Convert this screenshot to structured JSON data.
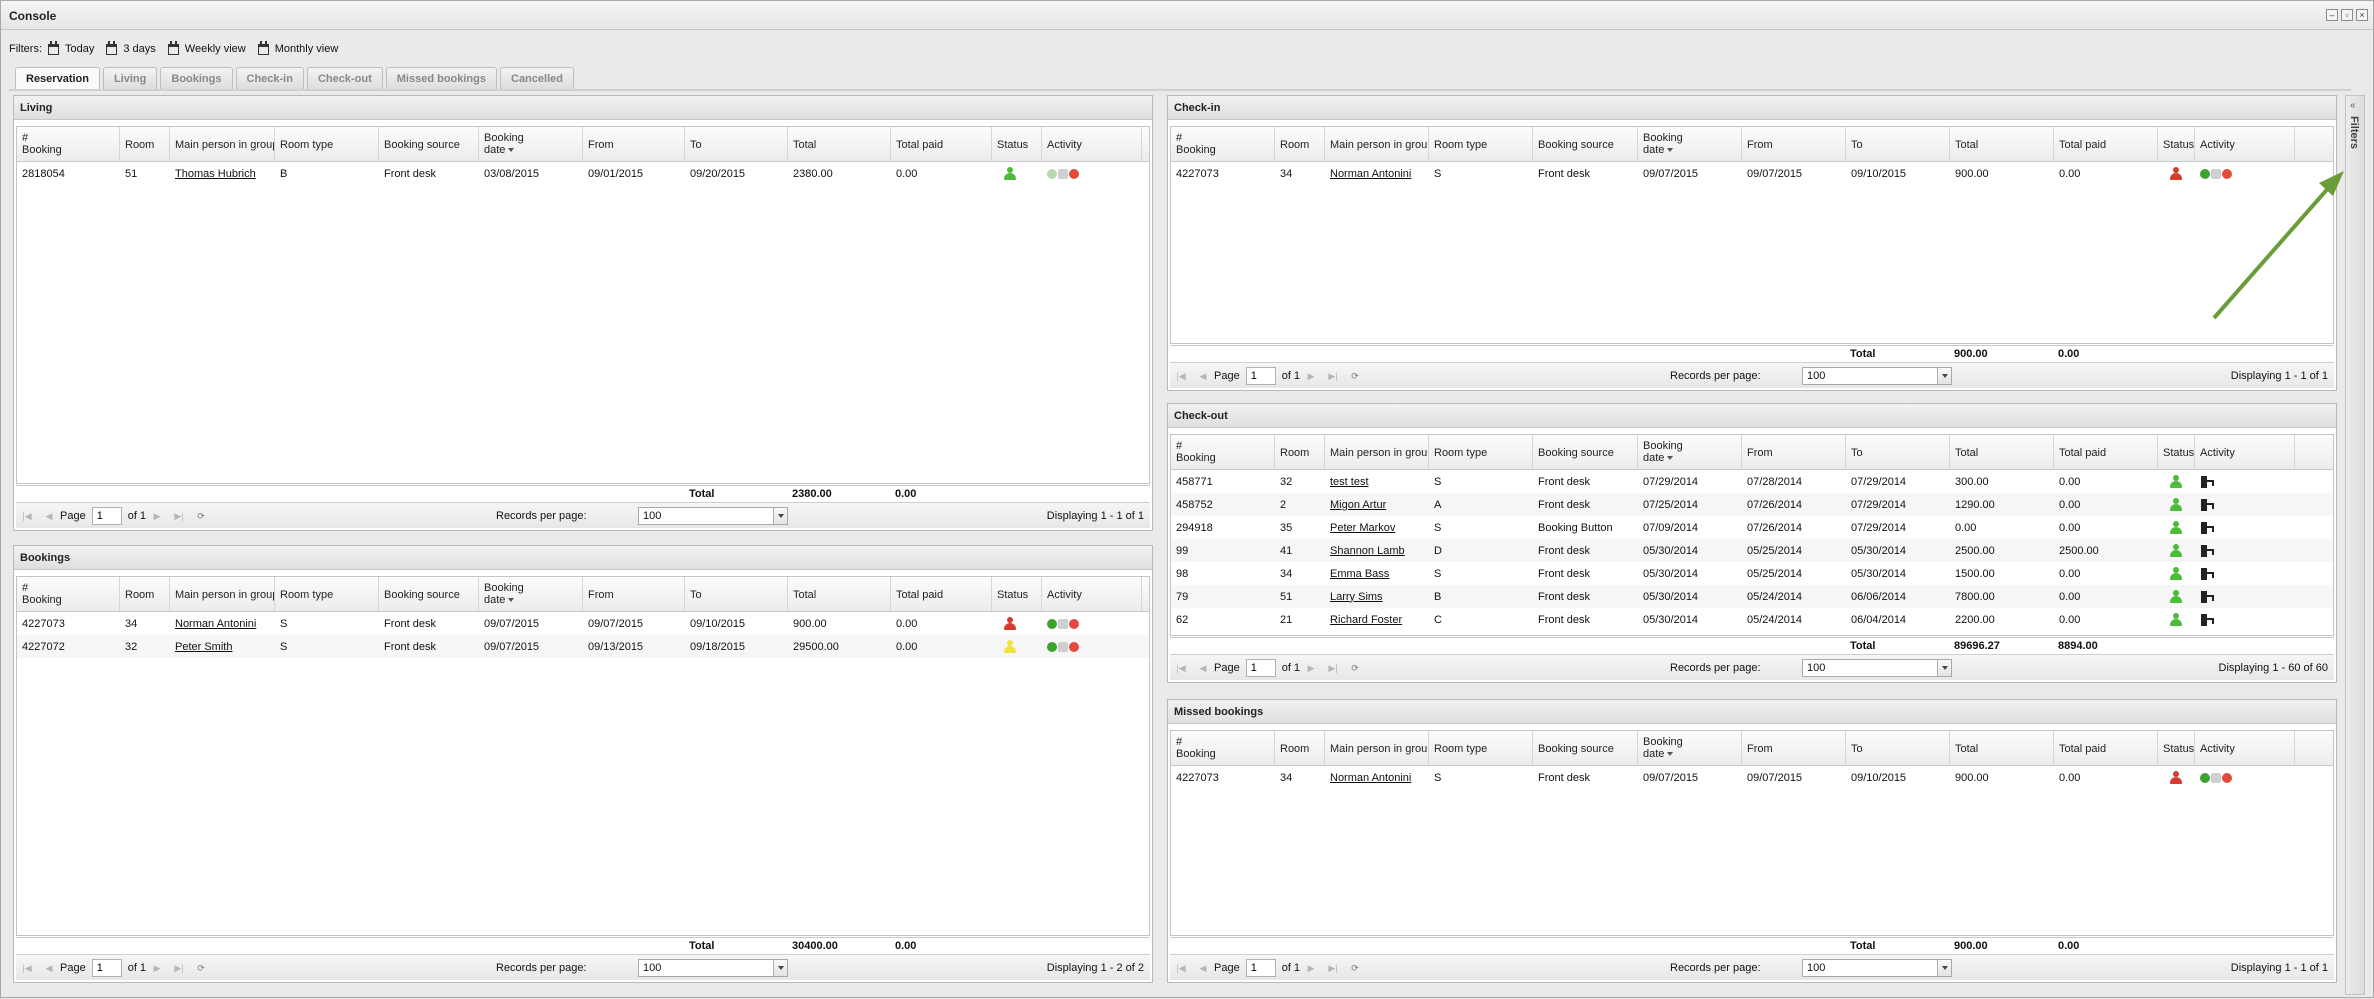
{
  "window": {
    "title": "Console"
  },
  "filters": {
    "label": "Filters:",
    "items": [
      "Today",
      "3 days",
      "Weekly view",
      "Monthly view"
    ]
  },
  "tabs": [
    "Reservation",
    "Living",
    "Bookings",
    "Check-in",
    "Check-out",
    "Missed bookings",
    "Cancelled"
  ],
  "sidebar": {
    "label": "Filters",
    "collapse": "«"
  },
  "columns": {
    "booking_l1": "#",
    "booking_l2": "Booking",
    "room": "Room",
    "main_person": "Main person in group",
    "room_type": "Room type",
    "source": "Booking source",
    "bdate_l1": "Booking",
    "bdate_l2": "date",
    "from": "From",
    "to": "To",
    "total": "Total",
    "total_paid": "Total paid",
    "status": "Status",
    "activity": "Activity"
  },
  "pager": {
    "page_label": "Page",
    "records_label": "Records per page:",
    "records_value": "100"
  },
  "colors": {
    "green": "#4cbb3a",
    "red": "#d73a2e",
    "yellow": "#f1e43a",
    "arrow": "#6a9d3a"
  },
  "living": {
    "title": "Living",
    "rows": [
      {
        "booking": "2818054",
        "room": "51",
        "person": "Thomas Hubrich",
        "type": "B",
        "source": "Front desk",
        "bdate": "03/08/2015",
        "from": "09/01/2015",
        "to": "09/20/2015",
        "total": "2380.00",
        "paid": "0.00",
        "status": "green",
        "activity": "ok-doc-no"
      }
    ],
    "total_label": "Total",
    "total": "2380.00",
    "total_paid": "0.00",
    "page": "1",
    "of": "of 1",
    "display": "Displaying 1 - 1 of 1"
  },
  "bookings": {
    "title": "Bookings",
    "rows": [
      {
        "booking": "4227073",
        "room": "34",
        "person": "Norman Antonini",
        "type": "S",
        "source": "Front desk",
        "bdate": "09/07/2015",
        "from": "09/07/2015",
        "to": "09/10/2015",
        "total": "900.00",
        "paid": "0.00",
        "status": "red",
        "activity": "ok-doc-no"
      },
      {
        "booking": "4227072",
        "room": "32",
        "person": "Peter Smith",
        "type": "S",
        "source": "Front desk",
        "bdate": "09/07/2015",
        "from": "09/13/2015",
        "to": "09/18/2015",
        "total": "29500.00",
        "paid": "0.00",
        "status": "yellow",
        "activity": "ok-doc-no"
      }
    ],
    "total_label": "Total",
    "total": "30400.00",
    "total_paid": "0.00",
    "page": "1",
    "of": "of 1",
    "display": "Displaying 1 - 2 of 2"
  },
  "checkin": {
    "title": "Check-in",
    "rows": [
      {
        "booking": "4227073",
        "room": "34",
        "person": "Norman Antonini",
        "type": "S",
        "source": "Front desk",
        "bdate": "09/07/2015",
        "from": "09/07/2015",
        "to": "09/10/2015",
        "total": "900.00",
        "paid": "0.00",
        "status": "red",
        "activity": "ok-doc-no"
      }
    ],
    "total_label": "Total",
    "total": "900.00",
    "total_paid": "0.00",
    "page": "1",
    "of": "of 1",
    "display": "Displaying 1 - 1 of 1"
  },
  "checkout": {
    "title": "Check-out",
    "rows": [
      {
        "booking": "458771",
        "room": "32",
        "person": "test test",
        "type": "S",
        "source": "Front desk",
        "bdate": "07/29/2014",
        "from": "07/28/2014",
        "to": "07/29/2014",
        "total": "300.00",
        "paid": "0.00",
        "status": "green"
      },
      {
        "booking": "458752",
        "room": "2",
        "person": "Migon Artur",
        "type": "A",
        "source": "Front desk",
        "bdate": "07/25/2014",
        "from": "07/26/2014",
        "to": "07/29/2014",
        "total": "1290.00",
        "paid": "0.00",
        "status": "green"
      },
      {
        "booking": "294918",
        "room": "35",
        "person": "Peter Markov",
        "type": "S",
        "source": "Booking Button",
        "bdate": "07/09/2014",
        "from": "07/26/2014",
        "to": "07/29/2014",
        "total": "0.00",
        "paid": "0.00",
        "status": "green"
      },
      {
        "booking": "99",
        "room": "41",
        "person": "Shannon Lamb",
        "type": "D",
        "source": "Front desk",
        "bdate": "05/30/2014",
        "from": "05/25/2014",
        "to": "05/30/2014",
        "total": "2500.00",
        "paid": "2500.00",
        "status": "green"
      },
      {
        "booking": "98",
        "room": "34",
        "person": "Emma Bass",
        "type": "S",
        "source": "Front desk",
        "bdate": "05/30/2014",
        "from": "05/25/2014",
        "to": "05/30/2014",
        "total": "1500.00",
        "paid": "0.00",
        "status": "green"
      },
      {
        "booking": "79",
        "room": "51",
        "person": "Larry Sims",
        "type": "B",
        "source": "Front desk",
        "bdate": "05/30/2014",
        "from": "05/24/2014",
        "to": "06/06/2014",
        "total": "7800.00",
        "paid": "0.00",
        "status": "green"
      },
      {
        "booking": "62",
        "room": "21",
        "person": "Richard Foster",
        "type": "C",
        "source": "Front desk",
        "bdate": "05/30/2014",
        "from": "05/24/2014",
        "to": "06/04/2014",
        "total": "2200.00",
        "paid": "0.00",
        "status": "green"
      }
    ],
    "total_label": "Total",
    "total": "89696.27",
    "total_paid": "8894.00",
    "page": "1",
    "of": "of 1",
    "display": "Displaying 1 - 60 of 60"
  },
  "missed": {
    "title": "Missed bookings",
    "rows": [
      {
        "booking": "4227073",
        "room": "34",
        "person": "Norman Antonini",
        "type": "S",
        "source": "Front desk",
        "bdate": "09/07/2015",
        "from": "09/07/2015",
        "to": "09/10/2015",
        "total": "900.00",
        "paid": "0.00",
        "status": "red",
        "activity": "ok-doc-no"
      }
    ],
    "total_label": "Total",
    "total": "900.00",
    "total_paid": "0.00",
    "page": "1",
    "of": "of 1",
    "display": "Displaying 1 - 1 of 1"
  }
}
